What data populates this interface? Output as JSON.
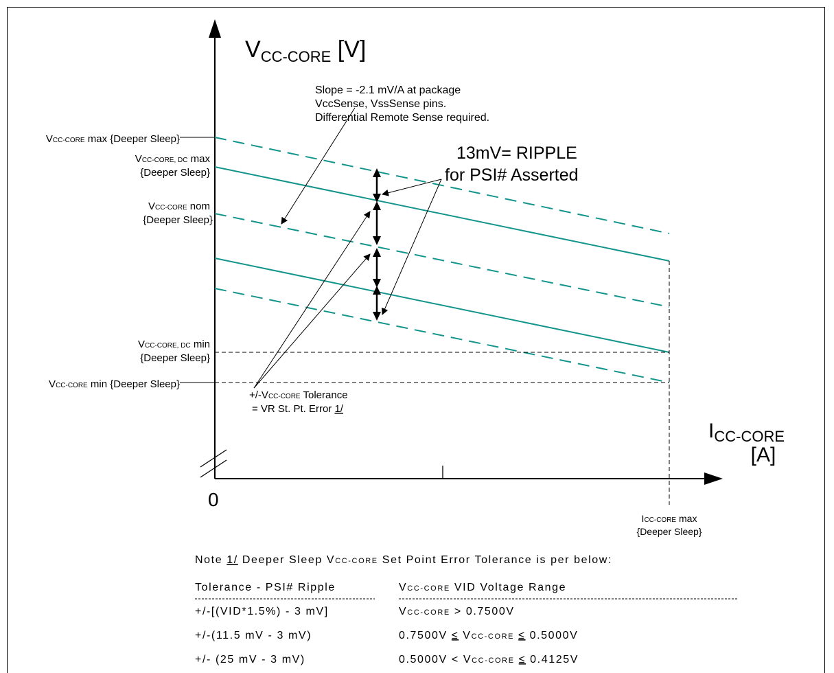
{
  "colors": {
    "line": "#13958c",
    "ink": "#000000",
    "frame": "#000000"
  },
  "axes": {
    "y_title_main": "V",
    "y_title_sub": "CC-CORE",
    "y_title_unit": " [V]",
    "x_title_main": "I",
    "x_title_sub": "CC-CORE",
    "x_title_unit": "[A]",
    "origin": "0"
  },
  "labels": {
    "vmax_v": "V",
    "vmax_sub": "CC-CORE",
    "vmax_rest": " max {Deeper Sleep}",
    "vdcmax_v": "V",
    "vdcmax_sub": "CC-CORE, DC",
    "vdcmax_rest": " max",
    "vdcmax_line2": "{Deeper Sleep}",
    "vnom_v": "V",
    "vnom_sub": "CC-CORE",
    "vnom_rest": " nom",
    "vnom_line2": "{Deeper Sleep}",
    "vdcmin_v": "V",
    "vdcmin_sub": "CC-CORE, DC",
    "vdcmin_rest": " min",
    "vdcmin_line2": "{Deeper Sleep}",
    "vmin_v": "V",
    "vmin_sub": "CC-CORE",
    "vmin_rest": " min {Deeper Sleep}",
    "imax_i": "I",
    "imax_sub": "CC-CORE",
    "imax_rest": " max",
    "imax_line2": "{Deeper Sleep}"
  },
  "annotations": {
    "slope_line1": "Slope = -2.1 mV/A at package",
    "slope_line2": "VccSense, VssSense pins.",
    "slope_line3": "Differential Remote Sense required.",
    "ripple_line1": "13mV= RIPPLE",
    "ripple_line2": "for PSI# Asserted",
    "tol_prefix": "+/-V",
    "tol_sub": "CC-CORE",
    "tol_rest": " Tolerance",
    "tol_line2": "= VR St. Pt. Error ",
    "tol_ref": "1/"
  },
  "note": {
    "prefix": "Note ",
    "ref": "1/",
    "text_a": "  Deeper Sleep V",
    "sub": "CC-CORE",
    "text_b": " Set Point Error Tolerance is per below:"
  },
  "table": {
    "header_col1": "Tolerance - PSI# Ripple",
    "header_col2_v": "V",
    "header_col2_sub": "CC-CORE",
    "header_col2_rest": " VID Voltage Range",
    "rows": [
      {
        "tol": " +/-[(VID*1.5%) - 3 mV]",
        "range_a": "V",
        "range_sub": "CC-CORE",
        "range_b": " > 0.7500V"
      },
      {
        "tol": "+/-(11.5 mV - 3 mV)",
        "range_a": "0.7500V ",
        "range_le1": "≤",
        "range_v": " V",
        "range_sub": "CC-CORE",
        "range_le2": "≤",
        "range_b": " 0.5000V"
      },
      {
        "tol": "+/- (25 mV - 3 mV)",
        "range_a": "0.5000V < V",
        "range_sub": "CC-CORE",
        "range_le2": "≤",
        "range_b": " 0.4125V"
      }
    ]
  }
}
